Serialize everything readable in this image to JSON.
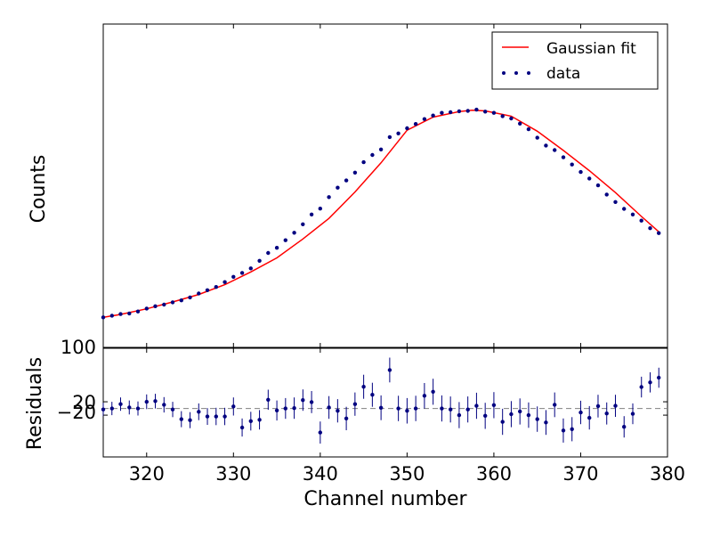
{
  "chart_data": [
    {
      "type": "line",
      "title": "",
      "xlabel": "",
      "ylabel": "Counts",
      "xlim": [
        315,
        380
      ],
      "ylim": [
        100,
        1090
      ],
      "y_tick_labels": [
        {
          "value": 100,
          "label": "100"
        }
      ],
      "legend": {
        "position": "top-right",
        "entries": [
          {
            "label": "Gaussian fit",
            "style": "line",
            "color": "#ff0000"
          },
          {
            "label": "data",
            "style": "points",
            "color": "#000080"
          }
        ]
      },
      "fit_color": "#ff0000",
      "data_color": "#000080",
      "series": [
        {
          "name": "data",
          "style": "points",
          "x": [
            315,
            316,
            317,
            318,
            319,
            320,
            321,
            322,
            323,
            324,
            325,
            326,
            327,
            328,
            329,
            330,
            331,
            332,
            333,
            334,
            335,
            336,
            337,
            338,
            339,
            340,
            341,
            342,
            343,
            344,
            345,
            346,
            347,
            348,
            349,
            350,
            351,
            352,
            353,
            354,
            355,
            356,
            357,
            358,
            359,
            360,
            361,
            362,
            363,
            364,
            365,
            366,
            367,
            368,
            369,
            370,
            371,
            372,
            373,
            374,
            375,
            376,
            377,
            378,
            379
          ],
          "y": [
            192,
            197,
            202,
            204,
            210,
            219,
            226,
            231,
            238,
            244,
            253,
            265,
            275,
            285,
            300,
            316,
            328,
            342,
            365,
            389,
            405,
            428,
            451,
            477,
            507,
            525,
            560,
            589,
            611,
            635,
            667,
            689,
            706,
            744,
            755,
            771,
            784,
            799,
            810,
            818,
            820,
            823,
            824,
            828,
            822,
            818,
            808,
            801,
            785,
            768,
            742,
            718,
            704,
            682,
            660,
            637,
            617,
            596,
            568,
            545,
            524,
            507,
            488,
            465,
            450
          ]
        },
        {
          "name": "Gaussian fit",
          "style": "line",
          "x": [
            315,
            317,
            320,
            323,
            326,
            329,
            332,
            335,
            338,
            341,
            344,
            347,
            350,
            353,
            356,
            357.5,
            359,
            362,
            365,
            368,
            371,
            374,
            377,
            379
          ],
          "y": [
            192,
            201,
            218,
            239,
            262,
            292,
            331,
            374,
            432,
            495,
            576,
            665,
            765,
            805,
            822,
            826,
            824,
            808,
            762,
            703,
            641,
            574,
            501,
            454
          ]
        }
      ]
    },
    {
      "type": "scatter",
      "title": "",
      "xlabel": "Channel number",
      "ylabel": "Residuals",
      "xlim": [
        315,
        380
      ],
      "ylim": [
        -145,
        180
      ],
      "x_ticks": [
        320,
        330,
        340,
        350,
        360,
        370,
        380
      ],
      "y_tick_labels": [
        {
          "value": 20,
          "label": "20"
        },
        {
          "value": -20,
          "label": "−20"
        }
      ],
      "zero_line": true,
      "data_color": "#000080",
      "series": [
        {
          "name": "residuals",
          "x": [
            315,
            316,
            317,
            318,
            319,
            320,
            321,
            322,
            323,
            324,
            325,
            326,
            327,
            328,
            329,
            330,
            331,
            332,
            333,
            334,
            335,
            336,
            337,
            338,
            339,
            340,
            341,
            342,
            343,
            344,
            345,
            346,
            347,
            348,
            349,
            350,
            351,
            352,
            353,
            354,
            355,
            356,
            357,
            358,
            359,
            360,
            361,
            362,
            363,
            364,
            365,
            366,
            367,
            368,
            369,
            370,
            371,
            372,
            373,
            374,
            375,
            376,
            377,
            378,
            379
          ],
          "y": [
            -3,
            0,
            13,
            3,
            0,
            20,
            22,
            11,
            -3,
            -32,
            -35,
            -10,
            -24,
            -24,
            -24,
            6,
            -57,
            -38,
            -34,
            26,
            -6,
            0,
            1,
            25,
            19,
            -72,
            3,
            -7,
            -30,
            13,
            65,
            41,
            2,
            115,
            0,
            -7,
            0,
            38,
            50,
            0,
            -3,
            -20,
            -3,
            8,
            -22,
            10,
            -40,
            -17,
            -9,
            -20,
            -32,
            -42,
            11,
            -66,
            -62,
            -12,
            -28,
            7,
            -15,
            8,
            -55,
            -16,
            64,
            78,
            92
          ],
          "yerr": [
            20,
            20,
            20,
            21,
            21,
            22,
            22,
            23,
            23,
            24,
            24,
            25,
            25,
            26,
            26,
            27,
            27,
            28,
            29,
            30,
            30,
            31,
            32,
            32,
            33,
            33,
            34,
            35,
            35,
            35,
            36,
            36,
            37,
            37,
            38,
            38,
            38,
            38,
            39,
            39,
            39,
            39,
            39,
            39,
            39,
            39,
            39,
            39,
            39,
            38,
            38,
            37,
            37,
            36,
            36,
            35,
            35,
            34,
            33,
            33,
            32,
            31,
            31,
            30,
            30
          ]
        }
      ]
    }
  ]
}
